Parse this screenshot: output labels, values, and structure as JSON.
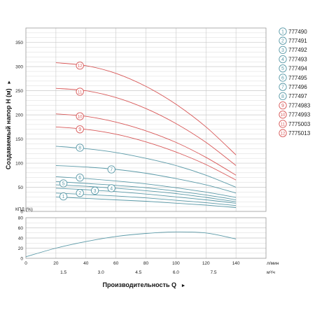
{
  "chart_data": [
    {
      "type": "line",
      "title": "",
      "ylabel": "Создаваемый напор H (м)",
      "ylabel_arrow": "►",
      "x_unit": "л/мин",
      "x_unit_secondary": "м³/ч",
      "xlim": [
        0,
        160
      ],
      "ylim": [
        0,
        380
      ],
      "x_ticks": [
        0,
        20,
        40,
        60,
        80,
        100,
        120,
        140
      ],
      "x_ticks_secondary": [
        {
          "x": 25,
          "label": "1.5"
        },
        {
          "x": 50,
          "label": "3.0"
        },
        {
          "x": 75,
          "label": "4.5"
        },
        {
          "x": 100,
          "label": "6.0"
        },
        {
          "x": 125,
          "label": "7.5"
        }
      ],
      "y_ticks": [
        0,
        50,
        100,
        150,
        200,
        250,
        300,
        350
      ],
      "grid": true,
      "legend_position": "right",
      "colors": {
        "blue": "#5b9aa8",
        "red": "#d85858",
        "grid": "#c9c9c9",
        "frame": "#999999"
      },
      "series": [
        {
          "name": "777490",
          "marker": "1",
          "color": "blue",
          "x": [
            20,
            40,
            60,
            80,
            100,
            120,
            140
          ],
          "y": [
            30,
            27,
            24,
            21,
            17,
            13,
            8
          ],
          "label_at": [
            25,
            31
          ]
        },
        {
          "name": "777491",
          "marker": "2",
          "color": "blue",
          "x": [
            20,
            40,
            60,
            80,
            100,
            120,
            140
          ],
          "y": [
            38,
            35,
            32,
            28,
            23,
            18,
            12
          ],
          "label_at": [
            36,
            38
          ]
        },
        {
          "name": "777492",
          "marker": "3",
          "color": "blue",
          "x": [
            20,
            40,
            60,
            80,
            100,
            120,
            140
          ],
          "y": [
            48,
            45,
            41,
            36,
            30,
            24,
            17
          ],
          "label_at": [
            46,
            43
          ]
        },
        {
          "name": "777493",
          "marker": "4",
          "color": "blue",
          "x": [
            20,
            40,
            60,
            80,
            100,
            120,
            140
          ],
          "y": [
            55,
            52,
            48,
            43,
            37,
            29,
            20
          ],
          "label_at": [
            57,
            48
          ]
        },
        {
          "name": "777494",
          "marker": "5",
          "color": "blue",
          "x": [
            20,
            40,
            60,
            80,
            100,
            120,
            140
          ],
          "y": [
            62,
            58,
            54,
            49,
            42,
            34,
            24
          ],
          "label_at": [
            25,
            58
          ]
        },
        {
          "name": "777495",
          "marker": "6",
          "color": "blue",
          "x": [
            20,
            40,
            60,
            80,
            100,
            120,
            140
          ],
          "y": [
            72,
            68,
            63,
            57,
            49,
            40,
            29
          ],
          "label_at": [
            36,
            70
          ]
        },
        {
          "name": "777496",
          "marker": "7",
          "color": "blue",
          "x": [
            20,
            40,
            60,
            80,
            100,
            120,
            140
          ],
          "y": [
            95,
            92,
            87,
            79,
            68,
            55,
            38
          ],
          "label_at": [
            57,
            87
          ]
        },
        {
          "name": "777497",
          "marker": "8",
          "color": "blue",
          "x": [
            20,
            40,
            60,
            80,
            100,
            120,
            140
          ],
          "y": [
            135,
            130,
            122,
            110,
            95,
            75,
            50
          ],
          "label_at": [
            36,
            132
          ]
        },
        {
          "name": "7774983",
          "marker": "9",
          "color": "red",
          "x": [
            20,
            40,
            60,
            80,
            100,
            120,
            140
          ],
          "y": [
            175,
            170,
            160,
            144,
            123,
            97,
            65
          ],
          "label_at": [
            36,
            170
          ]
        },
        {
          "name": "7774993",
          "marker": "10",
          "color": "red",
          "x": [
            20,
            40,
            60,
            80,
            100,
            120,
            140
          ],
          "y": [
            202,
            197,
            185,
            167,
            143,
            112,
            75
          ],
          "label_at": [
            36,
            197
          ]
        },
        {
          "name": "7775003",
          "marker": "11",
          "color": "red",
          "x": [
            20,
            40,
            60,
            80,
            100,
            120,
            140
          ],
          "y": [
            255,
            250,
            236,
            213,
            182,
            143,
            95
          ],
          "label_at": [
            36,
            248
          ]
        },
        {
          "name": "7775013",
          "marker": "12",
          "color": "red",
          "x": [
            20,
            40,
            60,
            80,
            100,
            120,
            140
          ],
          "y": [
            308,
            302,
            286,
            259,
            222,
            175,
            117
          ],
          "label_at": [
            36,
            302
          ]
        }
      ]
    },
    {
      "type": "line",
      "ylabel": "КПД (%)",
      "xlabel": "Производительность Q",
      "xlabel_arrow": "►",
      "xlim": [
        0,
        160
      ],
      "ylim": [
        0,
        80
      ],
      "y_ticks": [
        0,
        20,
        40,
        60,
        80
      ],
      "grid": true,
      "series": [
        {
          "color": "blue",
          "x": [
            0,
            20,
            40,
            60,
            80,
            100,
            120,
            140
          ],
          "y": [
            3,
            20,
            33,
            43,
            49,
            52,
            50,
            38
          ]
        }
      ]
    }
  ]
}
